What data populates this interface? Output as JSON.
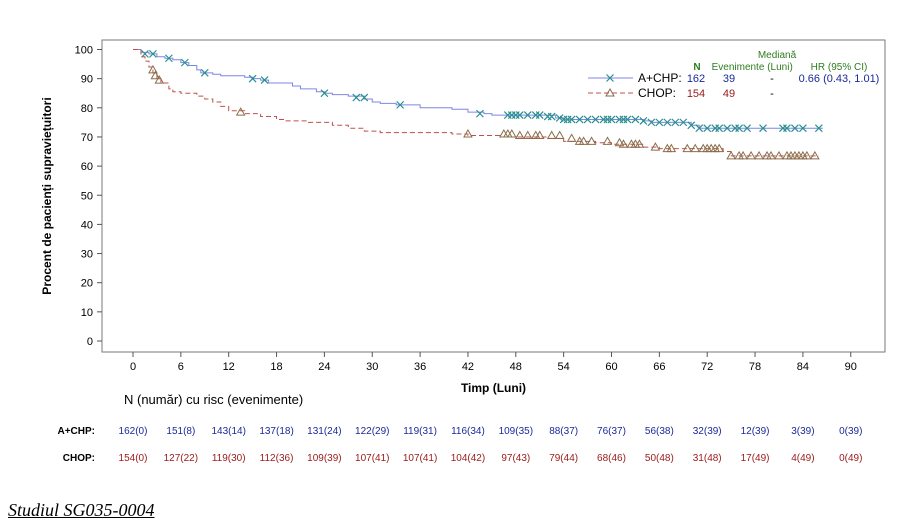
{
  "chart_data": {
    "type": "line",
    "subtype": "kaplan-meier",
    "title": "",
    "xlabel": "Timp (Luni)",
    "ylabel": "Procent de pacienți supraviețuitori",
    "xlim": [
      0,
      90
    ],
    "ylim": [
      0,
      100
    ],
    "x_ticks": [
      0,
      6,
      12,
      18,
      24,
      30,
      36,
      42,
      48,
      54,
      60,
      66,
      72,
      78,
      84,
      90
    ],
    "y_ticks": [
      0,
      10,
      20,
      30,
      40,
      50,
      60,
      70,
      80,
      90,
      100
    ],
    "grid": false,
    "legend": {
      "position": "top-right",
      "header_median": "Mediană",
      "header_n": "N",
      "header_events": "Evenimente",
      "header_months": "(Luni)",
      "header_hr": "HR (95% CI)",
      "header_color": "#2e7d1f"
    },
    "series": [
      {
        "name": "A+CHP:",
        "n": "162",
        "events": "39",
        "median": "-",
        "hr": "0.66 (0.43, 1.01)",
        "line_color": "#7f86e6",
        "marker_color": "#2a8f8f",
        "text_color": "#1a2a9a",
        "marker": "x",
        "dashed": false,
        "steps": [
          [
            0,
            100
          ],
          [
            1,
            99
          ],
          [
            2,
            98.5
          ],
          [
            3,
            97.5
          ],
          [
            4,
            97
          ],
          [
            5,
            96.5
          ],
          [
            6,
            95.5
          ],
          [
            7,
            94.5
          ],
          [
            8,
            93
          ],
          [
            8.5,
            92
          ],
          [
            10,
            91.5
          ],
          [
            11,
            91
          ],
          [
            14,
            90.5
          ],
          [
            15,
            90
          ],
          [
            16,
            89.5
          ],
          [
            17,
            88.5
          ],
          [
            20,
            87.5
          ],
          [
            21,
            86.5
          ],
          [
            23,
            85.5
          ],
          [
            24,
            85
          ],
          [
            25,
            84.5
          ],
          [
            27,
            84
          ],
          [
            29,
            83
          ],
          [
            30,
            82
          ],
          [
            31,
            81.5
          ],
          [
            33,
            81
          ],
          [
            36,
            80
          ],
          [
            40,
            79.5
          ],
          [
            42,
            78.5
          ],
          [
            44,
            78
          ],
          [
            45,
            77.5
          ],
          [
            53,
            76.5
          ],
          [
            54,
            76
          ],
          [
            64,
            75.5
          ],
          [
            65,
            75
          ],
          [
            70,
            74
          ],
          [
            71,
            73
          ],
          [
            86.5,
            73
          ]
        ],
        "censored": [
          [
            1.5,
            98.5
          ],
          [
            2.5,
            98.5
          ],
          [
            4.5,
            97
          ],
          [
            6.5,
            95.5
          ],
          [
            9,
            92
          ],
          [
            15,
            90
          ],
          [
            16.5,
            89.5
          ],
          [
            24,
            85
          ],
          [
            28,
            83.5
          ],
          [
            29,
            83.5
          ],
          [
            33.5,
            81
          ],
          [
            43.5,
            78
          ],
          [
            47,
            77.5
          ],
          [
            47.5,
            77.5
          ],
          [
            48,
            77.5
          ],
          [
            48.5,
            77.5
          ],
          [
            49.5,
            77.5
          ],
          [
            50.5,
            77.5
          ],
          [
            51,
            77.5
          ],
          [
            52,
            77
          ],
          [
            52.5,
            77
          ],
          [
            53.5,
            76.5
          ],
          [
            54,
            76
          ],
          [
            54.5,
            76
          ],
          [
            55,
            76
          ],
          [
            56,
            76
          ],
          [
            57,
            76
          ],
          [
            58,
            76
          ],
          [
            59,
            76
          ],
          [
            59.5,
            76
          ],
          [
            60,
            76
          ],
          [
            61,
            76
          ],
          [
            61.5,
            76
          ],
          [
            62,
            76
          ],
          [
            63,
            76
          ],
          [
            64,
            75.5
          ],
          [
            65,
            75
          ],
          [
            66,
            75
          ],
          [
            67,
            75
          ],
          [
            68,
            75
          ],
          [
            69,
            75
          ],
          [
            70,
            74
          ],
          [
            71,
            73
          ],
          [
            72,
            73
          ],
          [
            73,
            73
          ],
          [
            73.5,
            73
          ],
          [
            74.5,
            73
          ],
          [
            75.5,
            73
          ],
          [
            76,
            73
          ],
          [
            77,
            73
          ],
          [
            79,
            73
          ],
          [
            81.5,
            73
          ],
          [
            82,
            73
          ],
          [
            83,
            73
          ],
          [
            84,
            73
          ],
          [
            86,
            73
          ]
        ]
      },
      {
        "name": "CHOP:",
        "n": "154",
        "events": "49",
        "median": "-",
        "hr": "",
        "line_color": "#c0504d",
        "marker_color": "#8a6e4b",
        "text_color": "#9a1a1a",
        "marker": "triangle",
        "dashed": true,
        "steps": [
          [
            0,
            100
          ],
          [
            1,
            97.5
          ],
          [
            1.5,
            96
          ],
          [
            2,
            94
          ],
          [
            2.5,
            92
          ],
          [
            3,
            90
          ],
          [
            3.5,
            88.5
          ],
          [
            4.5,
            86.5
          ],
          [
            5,
            85.5
          ],
          [
            6,
            85
          ],
          [
            8,
            84
          ],
          [
            9,
            83
          ],
          [
            10,
            82
          ],
          [
            11,
            80.5
          ],
          [
            12,
            79
          ],
          [
            14,
            78
          ],
          [
            16,
            77
          ],
          [
            18,
            76
          ],
          [
            19,
            75.5
          ],
          [
            22,
            75
          ],
          [
            25,
            74
          ],
          [
            27,
            73
          ],
          [
            29,
            72
          ],
          [
            31,
            71.5
          ],
          [
            40,
            71
          ],
          [
            42,
            70.5
          ],
          [
            46,
            70
          ],
          [
            52,
            69.5
          ],
          [
            54,
            68.5
          ],
          [
            58,
            68
          ],
          [
            60,
            67.5
          ],
          [
            64,
            66.5
          ],
          [
            66,
            66
          ],
          [
            74,
            65
          ],
          [
            75,
            63.5
          ],
          [
            86,
            63.5
          ]
        ],
        "censored": [
          [
            2.5,
            93
          ],
          [
            2.8,
            91
          ],
          [
            3.3,
            89.5
          ],
          [
            13.5,
            78.5
          ],
          [
            42,
            71
          ],
          [
            46.5,
            71
          ],
          [
            47,
            71
          ],
          [
            47.5,
            71
          ],
          [
            48.5,
            70.5
          ],
          [
            49.5,
            70.5
          ],
          [
            50.5,
            70.5
          ],
          [
            51,
            70.5
          ],
          [
            52.5,
            70.5
          ],
          [
            53.5,
            70.5
          ],
          [
            55,
            69.5
          ],
          [
            56,
            68.5
          ],
          [
            56.5,
            68.5
          ],
          [
            57.5,
            68.5
          ],
          [
            59.5,
            68.5
          ],
          [
            61,
            68
          ],
          [
            61.5,
            67.5
          ],
          [
            62.5,
            67.5
          ],
          [
            63,
            67.5
          ],
          [
            63.5,
            67.5
          ],
          [
            65.5,
            66.5
          ],
          [
            67,
            66
          ],
          [
            67.5,
            66
          ],
          [
            69.5,
            66
          ],
          [
            70.5,
            66
          ],
          [
            71.5,
            66
          ],
          [
            72,
            66
          ],
          [
            72.5,
            66
          ],
          [
            73,
            66
          ],
          [
            73.5,
            66
          ],
          [
            75,
            63.5
          ],
          [
            76,
            63.5
          ],
          [
            76.5,
            63.5
          ],
          [
            77.5,
            63.5
          ],
          [
            78.5,
            63.5
          ],
          [
            79.5,
            63.5
          ],
          [
            80,
            63.5
          ],
          [
            81,
            63.5
          ],
          [
            82,
            63.5
          ],
          [
            82.5,
            63.5
          ],
          [
            83,
            63.5
          ],
          [
            83.5,
            63.5
          ],
          [
            84,
            63.5
          ],
          [
            84.5,
            63.5
          ],
          [
            85.5,
            63.5
          ]
        ]
      }
    ],
    "risk_table": {
      "title": "N (număr) cu risc (evenimente)",
      "rows": [
        {
          "label": "A+CHP:",
          "color": "#1a2a9a",
          "values": [
            "162(0)",
            "151(8)",
            "143(14)",
            "137(18)",
            "131(24)",
            "122(29)",
            "119(31)",
            "116(34)",
            "109(35)",
            "88(37)",
            "76(37)",
            "56(38)",
            "32(39)",
            "12(39)",
            "3(39)",
            "0(39)"
          ]
        },
        {
          "label": "CHOP:",
          "color": "#9a1a1a",
          "values": [
            "154(0)",
            "127(22)",
            "119(30)",
            "112(36)",
            "109(39)",
            "107(41)",
            "107(41)",
            "104(42)",
            "97(43)",
            "79(44)",
            "68(46)",
            "50(48)",
            "31(48)",
            "17(49)",
            "4(49)",
            "0(49)"
          ]
        }
      ]
    }
  },
  "caption": "Studiul SG035-0004"
}
